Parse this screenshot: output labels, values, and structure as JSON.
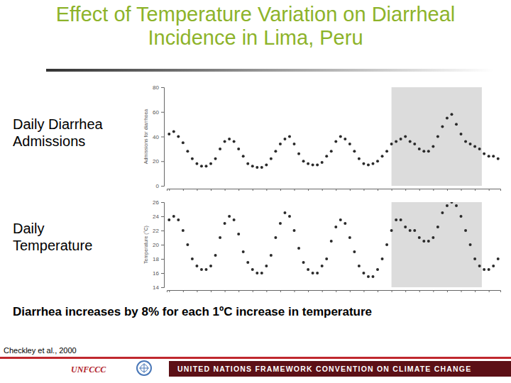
{
  "slide": {
    "title": "Effect of Temperature Variation on Diarrheal Incidence in Lima, Peru",
    "caption": "Diarrhea increases by 8% for each 1ºC increase in temperature",
    "source": "Checkley et al., 2000",
    "logo": "UNFCCC",
    "footer": "UNITED NATIONS FRAMEWORK CONVENTION ON CLIMATE CHANGE"
  },
  "chart_data": [
    {
      "type": "scatter",
      "title": "Daily Diarrhea Admissions",
      "y_label": "Admissions for diarrhoea",
      "x": [
        0,
        1,
        2,
        3,
        4,
        5,
        6,
        7,
        8,
        9,
        10,
        11,
        12,
        13,
        14,
        15,
        16,
        17,
        18,
        19,
        20,
        21,
        22,
        23,
        24,
        25,
        26,
        27,
        28,
        29,
        30,
        31,
        32,
        33,
        34,
        35,
        36,
        37,
        38,
        39,
        40,
        41,
        42,
        43,
        44,
        45,
        46,
        47,
        48,
        49,
        50,
        51,
        52,
        53,
        54,
        55,
        56,
        57,
        58,
        59,
        60,
        61,
        62,
        63,
        64,
        65,
        66,
        67,
        68,
        69,
        70,
        71
      ],
      "values": [
        42,
        44,
        40,
        35,
        28,
        22,
        18,
        16,
        16,
        18,
        22,
        30,
        36,
        38,
        36,
        30,
        24,
        18,
        16,
        15,
        15,
        17,
        22,
        28,
        34,
        38,
        40,
        34,
        26,
        20,
        18,
        17,
        17,
        19,
        24,
        28,
        36,
        40,
        38,
        34,
        28,
        22,
        18,
        17,
        18,
        20,
        24,
        28,
        34,
        36,
        38,
        40,
        36,
        34,
        30,
        28,
        28,
        32,
        40,
        48,
        55,
        58,
        50,
        42,
        36,
        34,
        32,
        30,
        26,
        24,
        24,
        22
      ],
      "color": "#2a2a2a",
      "marker": "circle",
      "xlim": [
        -0.5,
        71.5
      ],
      "xticks": [
        0,
        3,
        6,
        9,
        12,
        15,
        18,
        21,
        24,
        27,
        30,
        33,
        36,
        39,
        42,
        45,
        48,
        51,
        54,
        57,
        60,
        63,
        66,
        69
      ],
      "ylim": [
        0,
        80
      ],
      "yticks": [
        0,
        20,
        40,
        60,
        80
      ],
      "tick_labels": "y",
      "highlight": [
        48,
        67.5
      ]
    },
    {
      "type": "scatter",
      "title": "Daily Temperature",
      "y_label": "Temperature (°C)",
      "x": [
        0,
        1,
        2,
        3,
        4,
        5,
        6,
        7,
        8,
        9,
        10,
        11,
        12,
        13,
        14,
        15,
        16,
        17,
        18,
        19,
        20,
        21,
        22,
        23,
        24,
        25,
        26,
        27,
        28,
        29,
        30,
        31,
        32,
        33,
        34,
        35,
        36,
        37,
        38,
        39,
        40,
        41,
        42,
        43,
        44,
        45,
        46,
        47,
        48,
        49,
        50,
        51,
        52,
        53,
        54,
        55,
        56,
        57,
        58,
        59,
        60,
        61,
        62,
        63,
        64,
        65,
        66,
        67,
        68,
        69,
        70,
        71
      ],
      "values": [
        23.5,
        24,
        23.5,
        22,
        20,
        18,
        17,
        16.5,
        16.5,
        17,
        18.5,
        21,
        23,
        24,
        23.5,
        21.5,
        19,
        17.5,
        16.5,
        16,
        16,
        17,
        18.5,
        21,
        23,
        24.5,
        24,
        22,
        19.5,
        17.5,
        16.5,
        16,
        16,
        17,
        18,
        20.5,
        22.5,
        23.5,
        23,
        21,
        19,
        17,
        16,
        15.5,
        15.5,
        16.5,
        18,
        20,
        22,
        23.5,
        23.5,
        22.5,
        22,
        22,
        21,
        20.5,
        20.5,
        21,
        22.5,
        24.5,
        25.5,
        26,
        25.5,
        24,
        22,
        20,
        18,
        17,
        16.5,
        16.5,
        17,
        18
      ],
      "color": "#2a2a2a",
      "marker": "circle",
      "xlim": [
        -0.5,
        71.5
      ],
      "xticks": [
        0,
        3,
        6,
        9,
        12,
        15,
        18,
        21,
        24,
        27,
        30,
        33,
        36,
        39,
        42,
        45,
        48,
        51,
        54,
        57,
        60,
        63,
        66,
        69
      ],
      "ylim": [
        14,
        26
      ],
      "yticks": [
        14,
        16,
        18,
        20,
        22,
        24,
        26
      ],
      "tick_labels": "y",
      "highlight": [
        48,
        67.5
      ]
    }
  ]
}
